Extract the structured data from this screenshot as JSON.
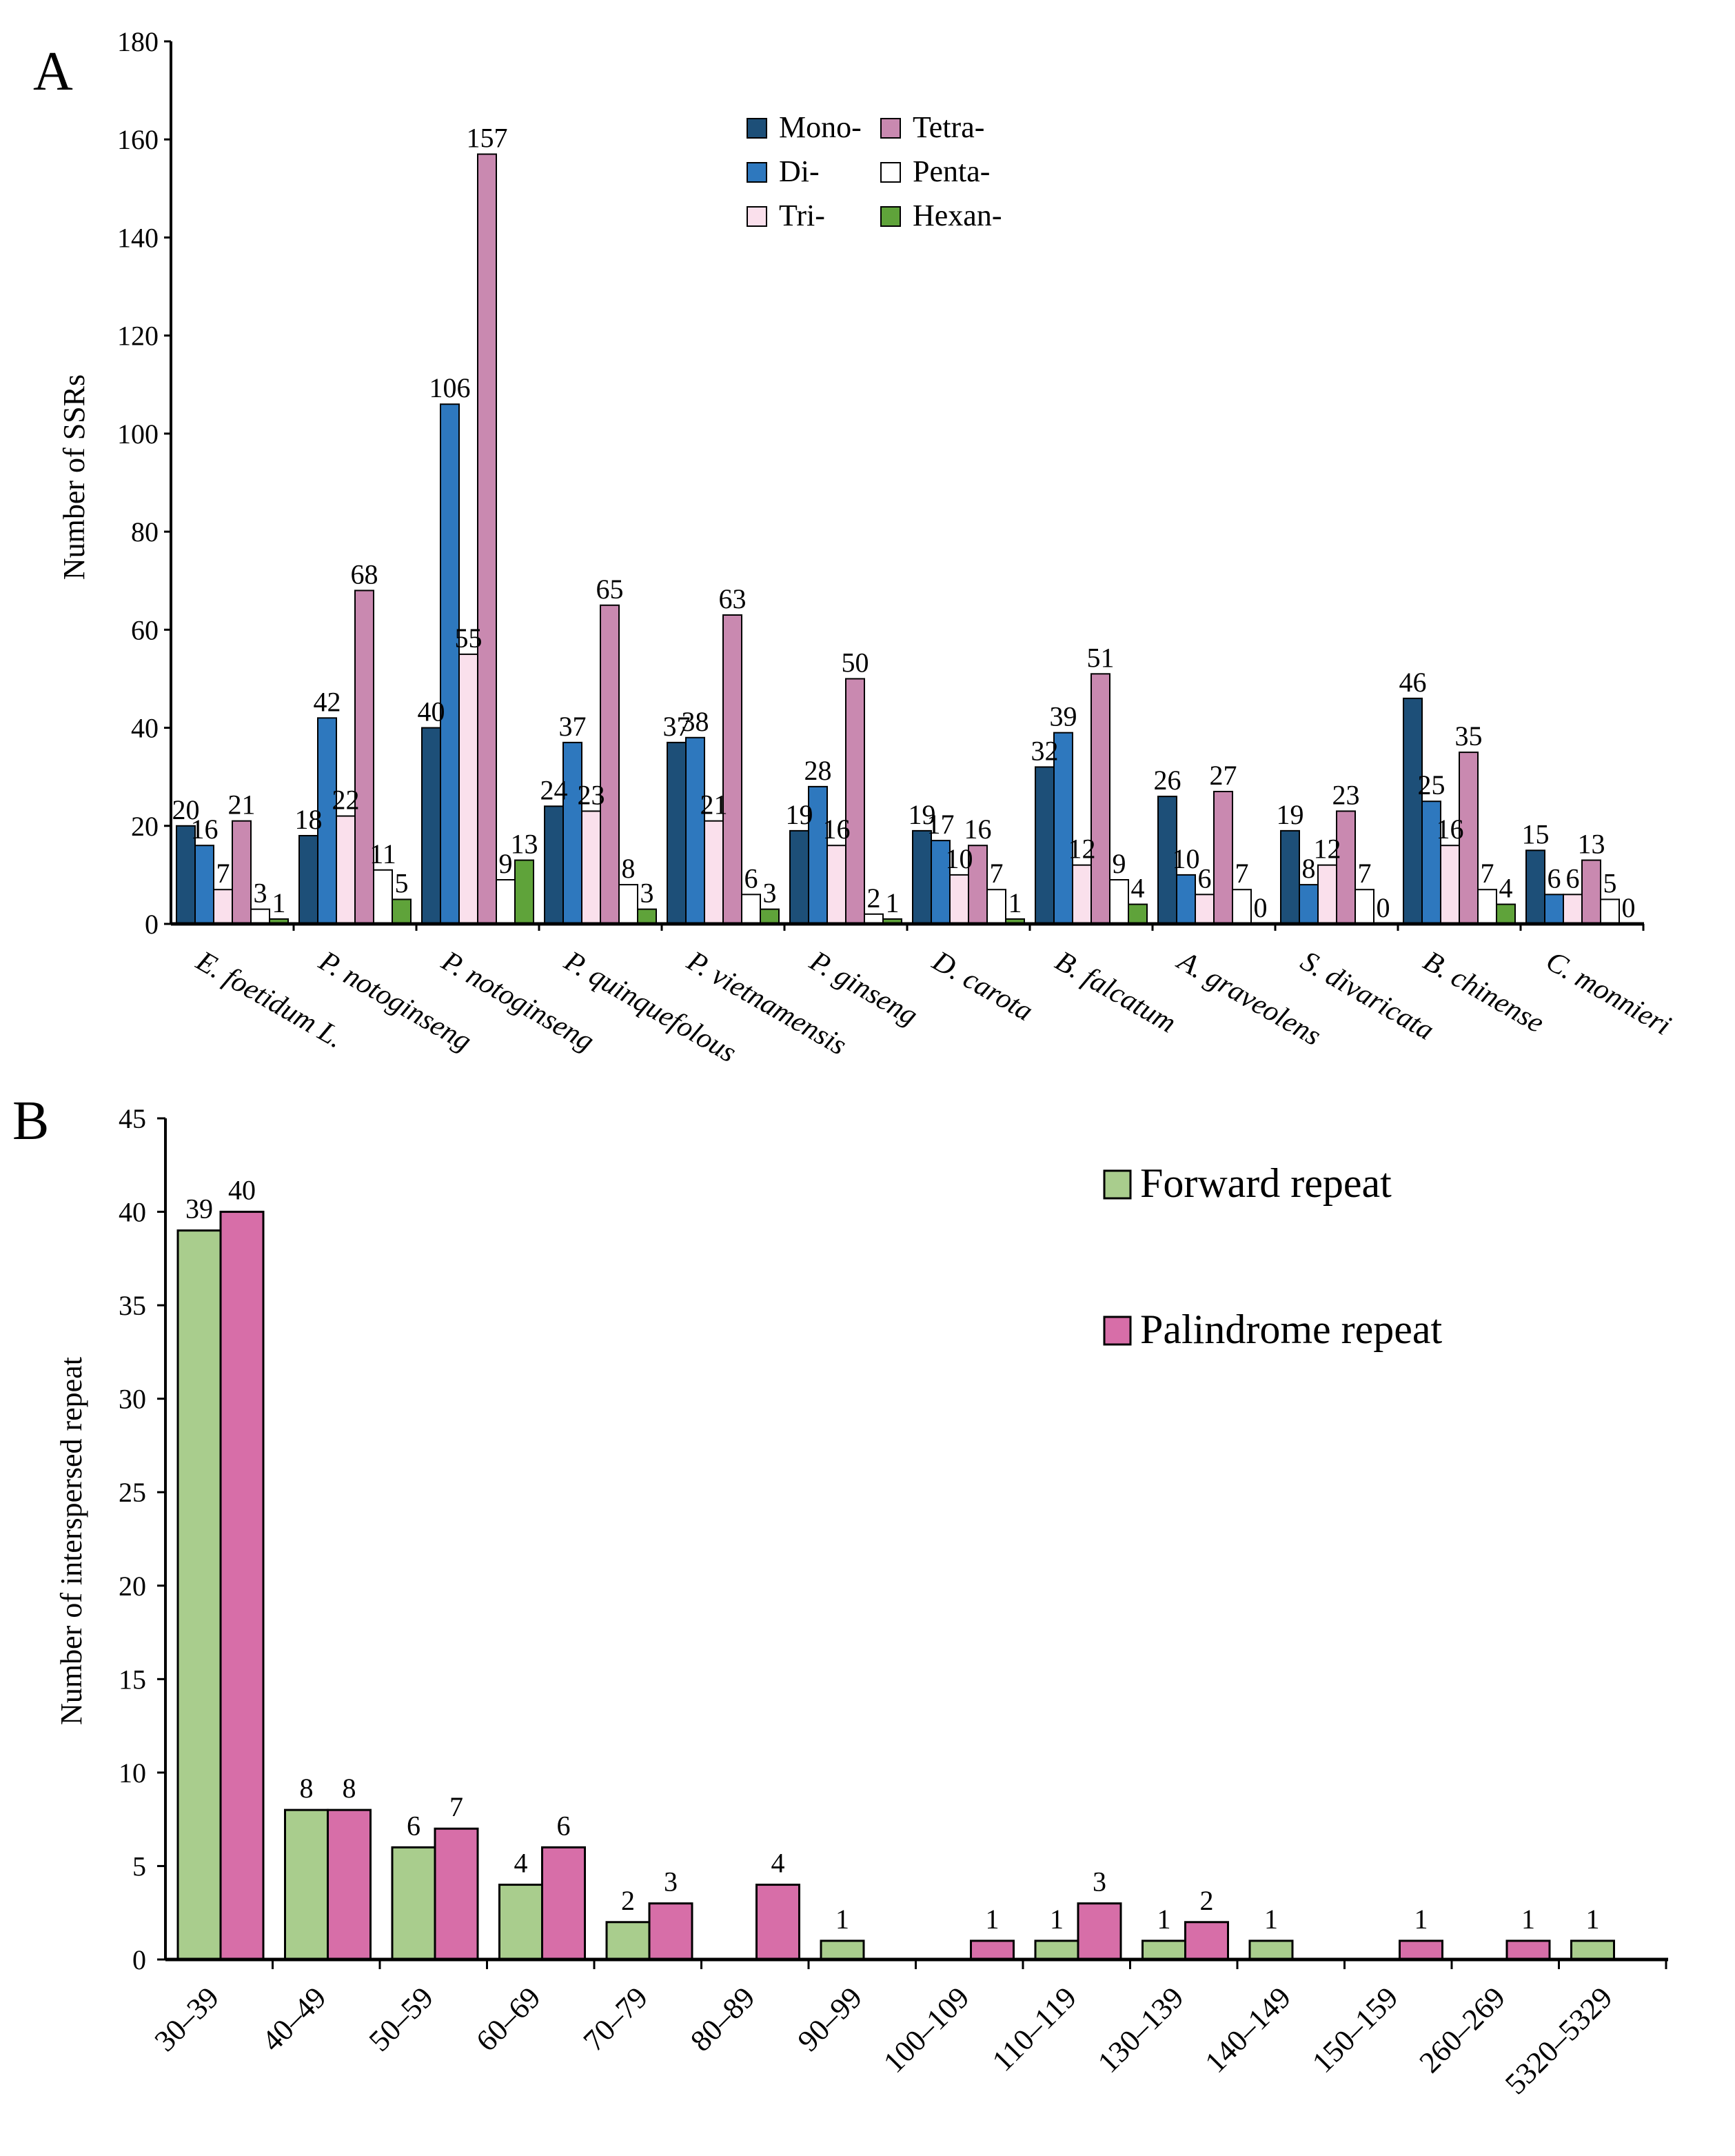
{
  "chart_data": [
    {
      "panel": "A",
      "type": "bar",
      "title": "",
      "xlabel": "",
      "ylabel": "Number of SSRs",
      "ylim": [
        0,
        180
      ],
      "yticks": [
        0,
        20,
        40,
        60,
        80,
        100,
        120,
        140,
        160,
        180
      ],
      "legend_position": "top-center",
      "categories": [
        "E. foetidum L.",
        "P. notoginseng",
        "P. notoginseng",
        "P. quinquefolous",
        "P. vietnamensis",
        "P. ginseng",
        "D. carota",
        "B. falcatum",
        "A. graveolens",
        "S. divaricata",
        "B. chinense",
        "C. monnieri"
      ],
      "series": [
        {
          "name": "Mono-",
          "color": "#1d4f78",
          "values": [
            20,
            18,
            40,
            24,
            37,
            19,
            19,
            32,
            26,
            19,
            46,
            15
          ]
        },
        {
          "name": "Di-",
          "color": "#2e78be",
          "values": [
            16,
            42,
            106,
            37,
            38,
            28,
            17,
            39,
            10,
            8,
            25,
            6
          ]
        },
        {
          "name": "Tri-",
          "color": "#fae0ec",
          "values": [
            7,
            22,
            55,
            23,
            21,
            16,
            10,
            12,
            6,
            12,
            16,
            6
          ]
        },
        {
          "name": "Tetra-",
          "color": "#c989b0",
          "values": [
            21,
            68,
            157,
            65,
            63,
            50,
            16,
            51,
            27,
            23,
            35,
            13
          ]
        },
        {
          "name": "Penta-",
          "color": "#ffffff",
          "values": [
            3,
            11,
            9,
            8,
            6,
            2,
            7,
            9,
            7,
            7,
            7,
            5
          ]
        },
        {
          "name": "Hexan-",
          "color": "#5fa33a",
          "values": [
            1,
            5,
            13,
            3,
            3,
            1,
            1,
            4,
            0,
            0,
            4,
            0
          ]
        }
      ]
    },
    {
      "panel": "B",
      "type": "bar",
      "title": "",
      "xlabel": "",
      "ylabel": "Number of interspersed repeat",
      "ylim": [
        0,
        45
      ],
      "yticks": [
        0,
        5,
        10,
        15,
        20,
        25,
        30,
        35,
        40,
        45
      ],
      "legend_position": "top-right",
      "categories": [
        "30–39",
        "40–49",
        "50–59",
        "60–69",
        "70–79",
        "80–89",
        "90–99",
        "100–109",
        "110–119",
        "130–139",
        "140–149",
        "150–159",
        "260–269",
        "5320–5329"
      ],
      "series": [
        {
          "name": "Forward repeat",
          "color": "#a9cd8d",
          "values": [
            39,
            8,
            6,
            4,
            2,
            0,
            1,
            0,
            1,
            1,
            1,
            0,
            0,
            1
          ]
        },
        {
          "name": "Palindrome repeat",
          "color": "#d76ea8",
          "values": [
            40,
            8,
            7,
            6,
            3,
            4,
            0,
            1,
            3,
            2,
            0,
            1,
            1,
            0
          ]
        }
      ]
    }
  ]
}
